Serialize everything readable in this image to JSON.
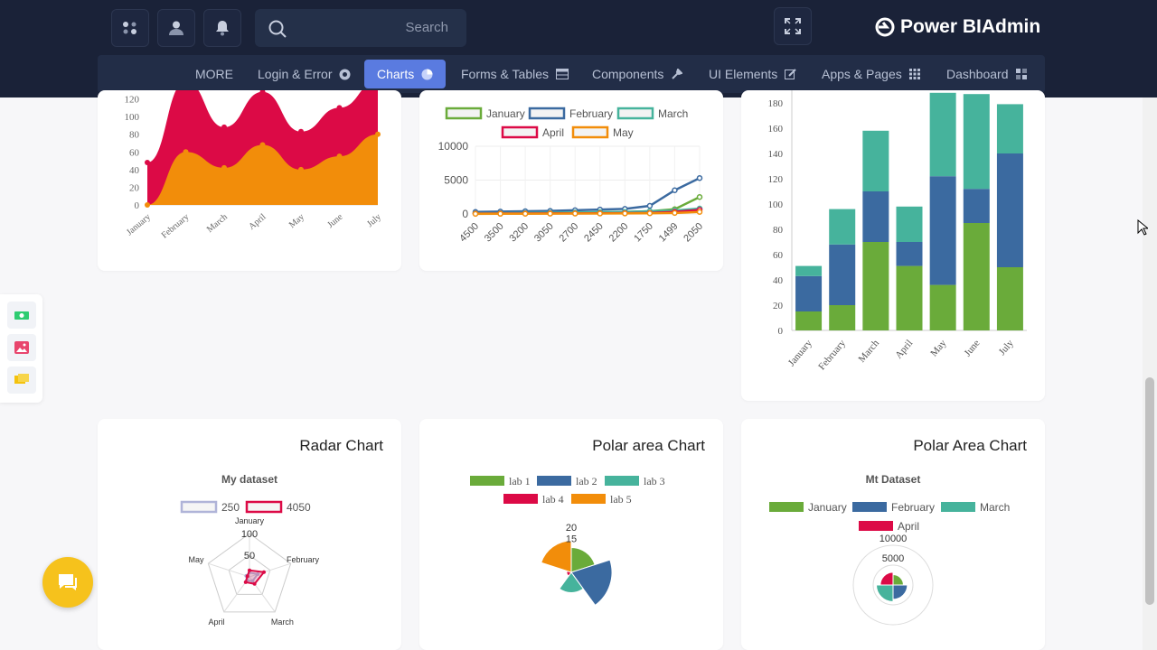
{
  "header": {
    "search_placeholder": "Search",
    "brand": "Power BIAdmin",
    "icons": [
      "apps-icon",
      "user-icon",
      "bell-icon",
      "search-icon",
      "fullscreen-icon",
      "logo-icon"
    ]
  },
  "nav": {
    "items": [
      {
        "label": "MORE",
        "icon": ""
      },
      {
        "label": "Login & Error",
        "icon": "circle-icon"
      },
      {
        "label": "Charts",
        "icon": "pie-icon",
        "active": true
      },
      {
        "label": "Forms & Tables",
        "icon": "table-icon"
      },
      {
        "label": "Components",
        "icon": "tool-icon"
      },
      {
        "label": "UI Elements",
        "icon": "edit-icon"
      },
      {
        "label": "Apps & Pages",
        "icon": "grid-icon"
      },
      {
        "label": "Dashboard",
        "icon": "dashboard-icon"
      }
    ],
    "active_color": "#5a7be0"
  },
  "cards": {
    "radar_title": "Radar Chart",
    "polar1_title": "Polar area Chart",
    "polar2_title": "Polar Area Chart"
  },
  "chart_data": [
    {
      "type": "area",
      "categories": [
        "January",
        "February",
        "March",
        "April",
        "May",
        "June",
        "July"
      ],
      "series": [
        {
          "color": "#f28d0a",
          "values": [
            0,
            60,
            42,
            68,
            40,
            55,
            80
          ]
        },
        {
          "color": "#dc0a46",
          "values": [
            48,
            140,
            88,
            128,
            83,
            110,
            140
          ]
        }
      ],
      "ylim": [
        0,
        140
      ],
      "yticks": [
        "0",
        "20",
        "40",
        "60",
        "80",
        "100",
        "120"
      ]
    },
    {
      "type": "line",
      "legend": [
        "January",
        "February",
        "March",
        "April",
        "May"
      ],
      "legend_colors": [
        "#6aab3a",
        "#3b6aa0",
        "#46b39c",
        "#dc0a46",
        "#f28d0a"
      ],
      "categories": [
        "4500",
        "3500",
        "3200",
        "3050",
        "2700",
        "2450",
        "2200",
        "1750",
        "1499",
        "2050"
      ],
      "series": [
        {
          "name": "January",
          "values": [
            150,
            150,
            150,
            160,
            200,
            250,
            300,
            400,
            700,
            2500
          ]
        },
        {
          "name": "February",
          "values": [
            300,
            350,
            400,
            450,
            550,
            650,
            750,
            1200,
            3500,
            5300
          ]
        },
        {
          "name": "March",
          "values": [
            100,
            120,
            150,
            180,
            220,
            260,
            300,
            400,
            500,
            800
          ]
        },
        {
          "name": "April",
          "values": [
            50,
            60,
            70,
            80,
            90,
            100,
            120,
            150,
            300,
            600
          ]
        },
        {
          "name": "May",
          "values": [
            20,
            30,
            40,
            50,
            60,
            70,
            80,
            100,
            150,
            300
          ]
        }
      ],
      "yticks": [
        "0",
        "5000",
        "10000"
      ],
      "ylim": [
        0,
        10000
      ]
    },
    {
      "type": "bar",
      "stacked": true,
      "categories": [
        "January",
        "February",
        "March",
        "April",
        "May",
        "June",
        "July"
      ],
      "series": [
        {
          "color": "#6aab3a",
          "values": [
            15,
            20,
            70,
            51,
            36,
            85,
            50
          ]
        },
        {
          "color": "#3b6aa0",
          "values": [
            28,
            48,
            40,
            19,
            86,
            27,
            90
          ]
        },
        {
          "color": "#46b39c",
          "values": [
            8,
            28,
            48,
            28,
            66,
            75,
            39
          ]
        }
      ],
      "ylim": [
        0,
        180
      ],
      "yticks": [
        "0",
        "20",
        "40",
        "60",
        "80",
        "100",
        "120",
        "140",
        "160",
        "180"
      ]
    },
    {
      "type": "radar",
      "title": "My dataset",
      "legend": [
        "250",
        "4050"
      ],
      "legend_colors": [
        "#b0b4d8",
        "#dc0a46"
      ],
      "axes": [
        "January",
        "February",
        "March",
        "April",
        "May"
      ],
      "ticks": [
        "50",
        "100"
      ],
      "series": [
        {
          "name": "250",
          "values": [
            10,
            20,
            12,
            10,
            8
          ]
        },
        {
          "name": "4050",
          "values": [
            15,
            35,
            20,
            15,
            5
          ]
        }
      ],
      "rmax": 100
    },
    {
      "type": "pie",
      "variant": "polar",
      "legend": [
        "lab 1",
        "lab 2",
        "lab 3",
        "lab 4",
        "lab 5"
      ],
      "legend_colors": [
        "#6aab3a",
        "#3b6aa0",
        "#46b39c",
        "#dc0a46",
        "#f28d0a"
      ],
      "values": [
        11,
        18,
        9,
        2,
        14
      ],
      "ticks": [
        "15",
        "20"
      ],
      "rmax": 20
    },
    {
      "type": "pie",
      "variant": "polar",
      "title": "Mt Dataset",
      "legend": [
        "January",
        "February",
        "March",
        "April"
      ],
      "legend_colors": [
        "#6aab3a",
        "#3b6aa0",
        "#46b39c",
        "#dc0a46"
      ],
      "values": [
        2600,
        3600,
        4200,
        3200
      ],
      "ticks": [
        "5000",
        "10000"
      ],
      "rmax": 10000
    }
  ]
}
